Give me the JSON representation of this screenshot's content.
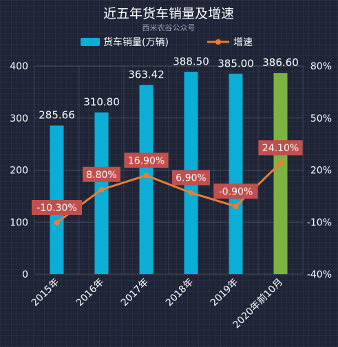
{
  "chart_data": {
    "type": "bar",
    "title": "近五年货车销量及增速",
    "subtitle": "西米农谷公众号",
    "categories": [
      "2015年",
      "2016年",
      "2017年",
      "2018年",
      "2019年",
      "2020年前10月"
    ],
    "y_left": {
      "min": 0,
      "max": 400,
      "ticks": [
        0,
        100,
        200,
        300,
        400
      ]
    },
    "y_right": {
      "min": -40,
      "max": 80,
      "ticks": [
        "-40%",
        "-10%",
        "20%",
        "50%",
        "80%"
      ],
      "tick_values": [
        -40,
        -10,
        20,
        50,
        80
      ]
    },
    "series": [
      {
        "name": "货车销量(万辆)",
        "type": "bar",
        "axis": "left",
        "values": [
          285.66,
          310.8,
          363.42,
          388.5,
          385.0,
          386.6
        ],
        "labels": [
          "285.66",
          "310.80",
          "363.42",
          "388.50",
          "385.00",
          "386.60"
        ],
        "color": "#0aaed6",
        "highlight_color": "#7cb342",
        "highlight_index": 5
      },
      {
        "name": "增速",
        "type": "line",
        "axis": "right",
        "values": [
          -10.3,
          8.8,
          16.9,
          6.9,
          -0.9,
          24.1
        ],
        "labels": [
          "-10.30%",
          "8.80%",
          "16.90%",
          "6.90%",
          "-0.90%",
          "24.10%"
        ],
        "color": "#ed7d31",
        "label_bg": "#c0504d"
      }
    ],
    "grid": true,
    "legend": "top-center"
  }
}
